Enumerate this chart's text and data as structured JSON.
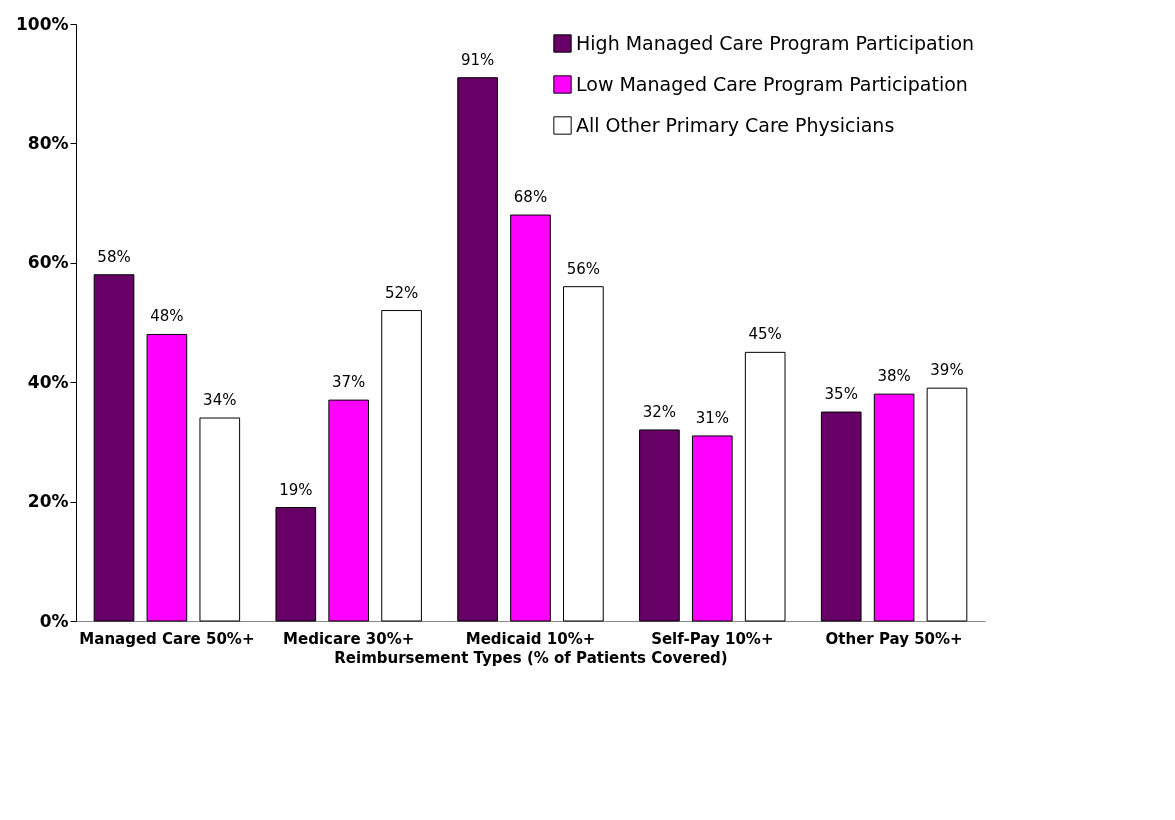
{
  "chart_data": {
    "type": "bar",
    "xlabel": "Reimbursement Types (% of Patients Covered)",
    "categories": [
      "Managed Care 50%+",
      "Medicare 30%+",
      "Medicaid 10%+",
      "Self-Pay 10%+",
      "Other Pay 50%+"
    ],
    "series": [
      {
        "name": "High Managed Care Program Participation",
        "color": "#660066",
        "values": [
          58,
          19,
          91,
          32,
          35
        ],
        "value_labels": [
          "58%",
          "19%",
          "91%",
          "32%",
          "35%"
        ]
      },
      {
        "name": "Low Managed Care Program Participation",
        "color": "#ff00ff",
        "values": [
          48,
          37,
          68,
          31,
          38
        ],
        "value_labels": [
          "48%",
          "37%",
          "68%",
          "31%",
          "38%"
        ]
      },
      {
        "name": "All Other Primary Care Physicians",
        "color": "#ffffff",
        "values": [
          34,
          52,
          56,
          45,
          39
        ],
        "value_labels": [
          "34%",
          "52%",
          "56%",
          "45%",
          "39%"
        ]
      }
    ],
    "ylim": [
      0,
      100
    ],
    "yticks": [
      {
        "value": 0,
        "label": "0%"
      },
      {
        "value": 20,
        "label": "20%"
      },
      {
        "value": 40,
        "label": "40%"
      },
      {
        "value": 60,
        "label": "60%"
      },
      {
        "value": 80,
        "label": "80%"
      },
      {
        "value": 100,
        "label": "100%"
      }
    ],
    "grid": false,
    "legend": "top right"
  }
}
